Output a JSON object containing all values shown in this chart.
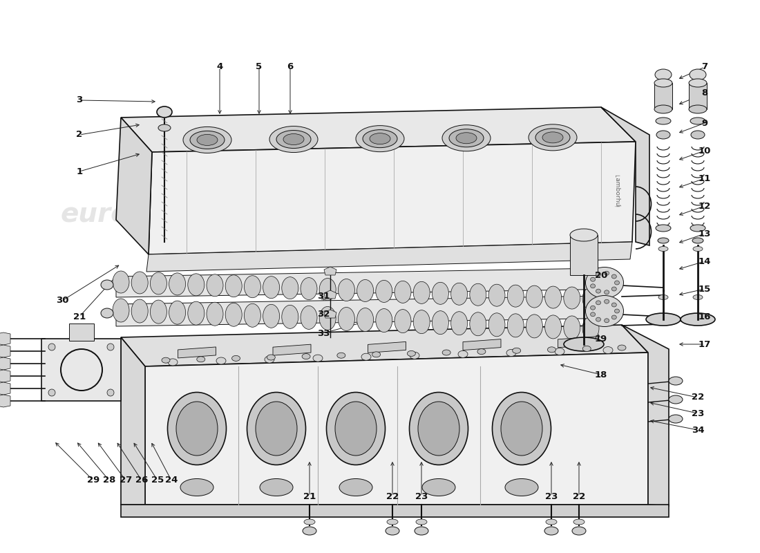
{
  "bg_color": "#ffffff",
  "line_color": "#111111",
  "light_fill": "#f0f0f0",
  "mid_fill": "#d8d8d8",
  "dark_fill": "#b0b0b0",
  "watermark_color": "#cccccc",
  "annotations": [
    [
      "1",
      115,
      248,
      205,
      222
    ],
    [
      "2",
      115,
      195,
      205,
      180
    ],
    [
      "3",
      115,
      145,
      228,
      147
    ],
    [
      "4",
      318,
      97,
      318,
      168
    ],
    [
      "5",
      375,
      97,
      375,
      168
    ],
    [
      "6",
      420,
      97,
      420,
      168
    ],
    [
      "7",
      1020,
      97,
      980,
      115
    ],
    [
      "8",
      1020,
      135,
      980,
      152
    ],
    [
      "9",
      1020,
      178,
      980,
      193
    ],
    [
      "10",
      1020,
      218,
      980,
      232
    ],
    [
      "11",
      1020,
      258,
      980,
      272
    ],
    [
      "12",
      1020,
      298,
      980,
      312
    ],
    [
      "13",
      1020,
      338,
      980,
      352
    ],
    [
      "14",
      1020,
      378,
      980,
      390
    ],
    [
      "15",
      1020,
      418,
      980,
      427
    ],
    [
      "16",
      1020,
      458,
      980,
      465
    ],
    [
      "17",
      1020,
      498,
      980,
      498
    ],
    [
      "18",
      870,
      542,
      808,
      527
    ],
    [
      "19",
      870,
      490,
      845,
      452
    ],
    [
      "20",
      870,
      398,
      838,
      367
    ],
    [
      "21",
      115,
      458,
      175,
      392
    ],
    [
      "22",
      1010,
      575,
      938,
      560
    ],
    [
      "23",
      1010,
      598,
      938,
      582
    ],
    [
      "34",
      1010,
      622,
      938,
      608
    ],
    [
      "24",
      248,
      695,
      218,
      638
    ],
    [
      "25",
      228,
      695,
      192,
      638
    ],
    [
      "26",
      205,
      695,
      168,
      638
    ],
    [
      "27",
      182,
      695,
      140,
      638
    ],
    [
      "28",
      158,
      695,
      110,
      638
    ],
    [
      "29",
      135,
      695,
      78,
      638
    ],
    [
      "30",
      90,
      435,
      175,
      382
    ],
    [
      "31",
      468,
      428,
      468,
      398
    ],
    [
      "32",
      468,
      455,
      468,
      425
    ],
    [
      "33",
      468,
      482,
      530,
      465
    ],
    [
      "21",
      448,
      718,
      448,
      665
    ],
    [
      "22",
      568,
      718,
      568,
      665
    ],
    [
      "23",
      610,
      718,
      610,
      665
    ],
    [
      "23",
      798,
      718,
      798,
      665
    ],
    [
      "22",
      838,
      718,
      838,
      665
    ]
  ]
}
